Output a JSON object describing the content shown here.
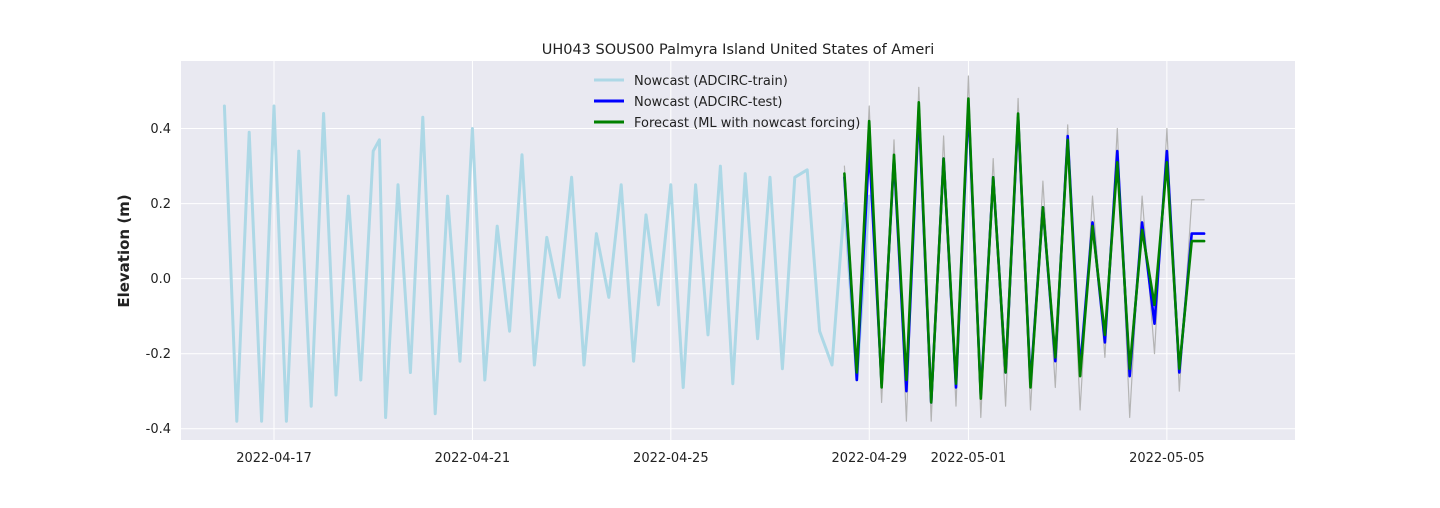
{
  "chart_data": {
    "type": "line",
    "title": "UH043 SOUS00 Palmyra Island United States of Ameri",
    "xlabel": "",
    "ylabel": "Elevation (m)",
    "xlim": [
      "2022-04-15T03:00",
      "2022-05-07T14:00"
    ],
    "ylim": [
      -0.43,
      0.58
    ],
    "grid": true,
    "legend_position": "top-center",
    "x_ticks": [
      "2022-04-17",
      "2022-04-21",
      "2022-04-25",
      "2022-04-29",
      "2022-05-01",
      "2022-05-05"
    ],
    "y_ticks": [
      -0.4,
      -0.2,
      0.0,
      0.2,
      0.4
    ],
    "colors": {
      "background": "#e9e9f1",
      "grid": "#ffffff",
      "train": "#add8e6",
      "test": "#0000ff",
      "forecast": "#008000",
      "observed": "#b4b4b4"
    },
    "series": [
      {
        "name": "Nowcast (ADCIRC-train)",
        "color": "#add8e6",
        "x": [
          "2022-04-16T00:00",
          "2022-04-16T06:00",
          "2022-04-16T12:00",
          "2022-04-16T18:00",
          "2022-04-17T00:00",
          "2022-04-17T06:00",
          "2022-04-17T12:00",
          "2022-04-17T18:00",
          "2022-04-18T00:00",
          "2022-04-18T06:00",
          "2022-04-18T12:00",
          "2022-04-18T18:00",
          "2022-04-19T00:00",
          "2022-04-19T03:00",
          "2022-04-19T06:00",
          "2022-04-19T12:00",
          "2022-04-19T18:00",
          "2022-04-20T00:00",
          "2022-04-20T06:00",
          "2022-04-20T12:00",
          "2022-04-20T18:00",
          "2022-04-21T00:00",
          "2022-04-21T06:00",
          "2022-04-21T12:00",
          "2022-04-21T18:00",
          "2022-04-22T00:00",
          "2022-04-22T06:00",
          "2022-04-22T12:00",
          "2022-04-22T18:00",
          "2022-04-23T00:00",
          "2022-04-23T06:00",
          "2022-04-23T12:00",
          "2022-04-23T18:00",
          "2022-04-24T00:00",
          "2022-04-24T06:00",
          "2022-04-24T12:00",
          "2022-04-24T18:00",
          "2022-04-25T00:00",
          "2022-04-25T06:00",
          "2022-04-25T12:00",
          "2022-04-25T18:00",
          "2022-04-26T00:00",
          "2022-04-26T06:00",
          "2022-04-26T12:00",
          "2022-04-26T18:00",
          "2022-04-27T00:00",
          "2022-04-27T06:00",
          "2022-04-27T12:00",
          "2022-04-27T18:00",
          "2022-04-28T00:00",
          "2022-04-28T06:00",
          "2022-04-28T12:00",
          "2022-04-28T18:00",
          "2022-04-29T00:00"
        ],
        "y": [
          0.46,
          -0.38,
          0.39,
          -0.38,
          0.46,
          -0.38,
          0.34,
          -0.34,
          0.44,
          -0.31,
          0.22,
          -0.27,
          0.34,
          0.37,
          -0.37,
          0.25,
          -0.25,
          0.43,
          -0.36,
          0.22,
          -0.22,
          0.4,
          -0.27,
          0.14,
          -0.14,
          0.33,
          -0.23,
          0.11,
          -0.05,
          0.27,
          -0.23,
          0.12,
          -0.05,
          0.25,
          -0.22,
          0.17,
          -0.07,
          0.25,
          -0.29,
          0.25,
          -0.15,
          0.3,
          -0.28,
          0.28,
          -0.16,
          0.27,
          -0.24,
          0.27,
          0.29,
          -0.14,
          -0.23,
          0.2,
          -0.27,
          0.22
        ]
      },
      {
        "name": "Nowcast (ADCIRC-test)",
        "color": "#0000ff",
        "x": [
          "2022-04-28T12:00",
          "2022-04-28T18:00",
          "2022-04-29T00:00",
          "2022-04-29T06:00",
          "2022-04-29T12:00",
          "2022-04-29T18:00",
          "2022-04-30T00:00",
          "2022-04-30T06:00",
          "2022-04-30T12:00",
          "2022-04-30T18:00",
          "2022-05-01T00:00",
          "2022-05-01T06:00",
          "2022-05-01T12:00",
          "2022-05-01T18:00",
          "2022-05-02T00:00",
          "2022-05-02T06:00",
          "2022-05-02T12:00",
          "2022-05-02T18:00",
          "2022-05-03T00:00",
          "2022-05-03T06:00",
          "2022-05-03T12:00",
          "2022-05-03T18:00",
          "2022-05-04T00:00",
          "2022-05-04T06:00",
          "2022-05-04T12:00",
          "2022-05-04T18:00",
          "2022-05-05T00:00",
          "2022-05-05T06:00",
          "2022-05-05T12:00",
          "2022-05-05T18:00"
        ],
        "y": [
          0.27,
          -0.27,
          0.35,
          -0.28,
          0.32,
          -0.3,
          0.45,
          -0.33,
          0.32,
          -0.29,
          0.46,
          -0.31,
          0.27,
          -0.25,
          0.43,
          -0.28,
          0.19,
          -0.22,
          0.38,
          -0.24,
          0.15,
          -0.17,
          0.34,
          -0.26,
          0.15,
          -0.12,
          0.34,
          -0.25,
          0.12,
          0.12
        ]
      },
      {
        "name": "Forecast (ML with nowcast forcing)",
        "color": "#008000",
        "x": [
          "2022-04-28T12:00",
          "2022-04-28T18:00",
          "2022-04-29T00:00",
          "2022-04-29T06:00",
          "2022-04-29T12:00",
          "2022-04-29T18:00",
          "2022-04-30T00:00",
          "2022-04-30T06:00",
          "2022-04-30T12:00",
          "2022-04-30T18:00",
          "2022-05-01T00:00",
          "2022-05-01T06:00",
          "2022-05-01T12:00",
          "2022-05-01T18:00",
          "2022-05-02T00:00",
          "2022-05-02T06:00",
          "2022-05-02T12:00",
          "2022-05-02T18:00",
          "2022-05-03T00:00",
          "2022-05-03T06:00",
          "2022-05-03T12:00",
          "2022-05-03T18:00",
          "2022-05-04T00:00",
          "2022-05-04T06:00",
          "2022-05-04T12:00",
          "2022-05-04T18:00",
          "2022-05-05T00:00",
          "2022-05-05T06:00",
          "2022-05-05T12:00",
          "2022-05-05T18:00"
        ],
        "y": [
          0.28,
          -0.25,
          0.42,
          -0.29,
          0.33,
          -0.27,
          0.47,
          -0.33,
          0.32,
          -0.28,
          0.48,
          -0.32,
          0.27,
          -0.25,
          0.44,
          -0.29,
          0.19,
          -0.21,
          0.37,
          -0.26,
          0.14,
          -0.15,
          0.31,
          -0.24,
          0.13,
          -0.07,
          0.31,
          -0.24,
          0.1,
          0.1
        ]
      },
      {
        "name": "",
        "color": "#b4b4b4",
        "x": [
          "2022-04-28T12:00",
          "2022-04-28T18:00",
          "2022-04-29T00:00",
          "2022-04-29T06:00",
          "2022-04-29T12:00",
          "2022-04-29T18:00",
          "2022-04-30T00:00",
          "2022-04-30T06:00",
          "2022-04-30T12:00",
          "2022-04-30T18:00",
          "2022-05-01T00:00",
          "2022-05-01T06:00",
          "2022-05-01T12:00",
          "2022-05-01T18:00",
          "2022-05-02T00:00",
          "2022-05-02T06:00",
          "2022-05-02T12:00",
          "2022-05-02T18:00",
          "2022-05-03T00:00",
          "2022-05-03T06:00",
          "2022-05-03T12:00",
          "2022-05-03T18:00",
          "2022-05-04T00:00",
          "2022-05-04T06:00",
          "2022-05-04T12:00",
          "2022-05-04T18:00",
          "2022-05-05T00:00",
          "2022-05-05T06:00",
          "2022-05-05T12:00",
          "2022-05-05T18:00"
        ],
        "y": [
          0.3,
          -0.22,
          0.46,
          -0.33,
          0.37,
          -0.38,
          0.51,
          -0.38,
          0.38,
          -0.34,
          0.54,
          -0.37,
          0.32,
          -0.34,
          0.48,
          -0.35,
          0.26,
          -0.29,
          0.41,
          -0.35,
          0.22,
          -0.21,
          0.4,
          -0.37,
          0.22,
          -0.2,
          0.4,
          -0.3,
          0.21,
          0.21
        ]
      }
    ]
  }
}
